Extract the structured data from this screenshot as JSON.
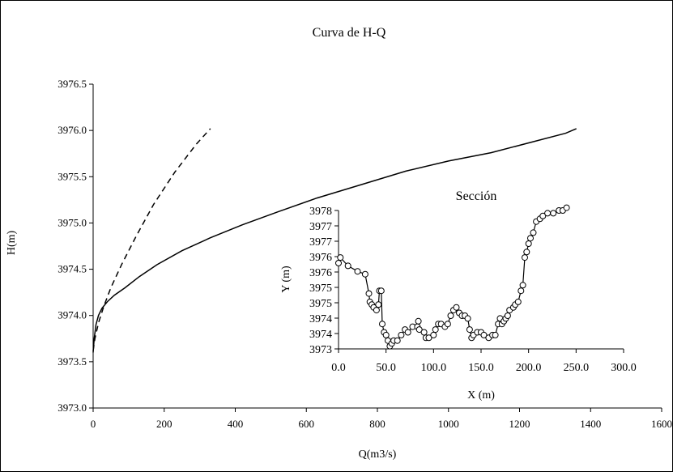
{
  "chart_data": [
    {
      "type": "line",
      "title": "Curva de H-Q",
      "xlabel": "Q(m3/s)",
      "ylabel": "H(m)",
      "xlim": [
        0,
        1600
      ],
      "ylim": [
        3973.0,
        3976.5
      ],
      "x_ticks": [
        "0",
        "200",
        "400",
        "600",
        "800",
        "1000",
        "1200",
        "1400",
        "1600"
      ],
      "y_ticks": [
        "3973.0",
        "3973.5",
        "3974.0",
        "3974.5",
        "3975.0",
        "3975.5",
        "3976.0",
        "3976.5"
      ],
      "grid": false,
      "series": [
        {
          "style": "solid",
          "color": "#000000",
          "points": [
            [
              0,
              3973.6
            ],
            [
              3,
              3973.75
            ],
            [
              8,
              3973.9
            ],
            [
              15,
              3974.0
            ],
            [
              25,
              3974.08
            ],
            [
              40,
              3974.15
            ],
            [
              60,
              3974.22
            ],
            [
              90,
              3974.3
            ],
            [
              130,
              3974.42
            ],
            [
              180,
              3974.55
            ],
            [
              250,
              3974.7
            ],
            [
              330,
              3974.84
            ],
            [
              420,
              3974.98
            ],
            [
              520,
              3975.12
            ],
            [
              630,
              3975.27
            ],
            [
              760,
              3975.42
            ],
            [
              880,
              3975.56
            ],
            [
              1000,
              3975.67
            ],
            [
              1120,
              3975.76
            ],
            [
              1240,
              3975.88
            ],
            [
              1330,
              3975.97
            ],
            [
              1360,
              3976.02
            ]
          ]
        },
        {
          "style": "dashed",
          "color": "#000000",
          "points": [
            [
              0,
              3973.62
            ],
            [
              5,
              3973.75
            ],
            [
              15,
              3973.92
            ],
            [
              30,
              3974.1
            ],
            [
              50,
              3974.3
            ],
            [
              80,
              3974.55
            ],
            [
              120,
              3974.85
            ],
            [
              170,
              3975.2
            ],
            [
              230,
              3975.55
            ],
            [
              290,
              3975.85
            ],
            [
              330,
              3976.02
            ]
          ]
        }
      ]
    },
    {
      "type": "scatter",
      "title": "Sección",
      "xlabel": "X (m)",
      "ylabel": "Y (m)",
      "xlim": [
        0,
        300
      ],
      "ylim": [
        3973,
        3978
      ],
      "x_ticks": [
        "0.0",
        "50.0",
        "100.0",
        "150.0",
        "200.0",
        "250.0",
        "300.0"
      ],
      "y_ticks": [
        "3973",
        "3974",
        "3974",
        "3975",
        "3975",
        "3976",
        "3976",
        "3977",
        "3977",
        "3978"
      ],
      "marker": "open-circle",
      "connected": true,
      "points": [
        [
          0,
          3976.1
        ],
        [
          2,
          3976.3
        ],
        [
          10,
          3976.0
        ],
        [
          20,
          3975.8
        ],
        [
          28,
          3975.7
        ],
        [
          32,
          3975.0
        ],
        [
          33,
          3974.7
        ],
        [
          35,
          3974.6
        ],
        [
          37,
          3974.5
        ],
        [
          40,
          3974.4
        ],
        [
          42,
          3974.6
        ],
        [
          43,
          3975.1
        ],
        [
          45,
          3975.1
        ],
        [
          46,
          3973.9
        ],
        [
          48,
          3973.6
        ],
        [
          50,
          3973.5
        ],
        [
          52,
          3973.3
        ],
        [
          54,
          3973.1
        ],
        [
          56,
          3973.2
        ],
        [
          58,
          3973.3
        ],
        [
          62,
          3973.3
        ],
        [
          66,
          3973.5
        ],
        [
          70,
          3973.7
        ],
        [
          73,
          3973.6
        ],
        [
          78,
          3973.8
        ],
        [
          83,
          3973.8
        ],
        [
          84,
          3974.0
        ],
        [
          85,
          3973.7
        ],
        [
          90,
          3973.6
        ],
        [
          92,
          3973.4
        ],
        [
          95,
          3973.4
        ],
        [
          100,
          3973.5
        ],
        [
          102,
          3973.7
        ],
        [
          105,
          3973.9
        ],
        [
          108,
          3973.9
        ],
        [
          112,
          3973.8
        ],
        [
          115,
          3973.9
        ],
        [
          118,
          3974.2
        ],
        [
          121,
          3974.4
        ],
        [
          124,
          3974.5
        ],
        [
          127,
          3974.3
        ],
        [
          130,
          3974.2
        ],
        [
          133,
          3974.2
        ],
        [
          136,
          3974.1
        ],
        [
          138,
          3973.7
        ],
        [
          140,
          3973.4
        ],
        [
          142,
          3973.5
        ],
        [
          146,
          3973.6
        ],
        [
          150,
          3973.6
        ],
        [
          153,
          3973.5
        ],
        [
          158,
          3973.4
        ],
        [
          162,
          3973.5
        ],
        [
          165,
          3973.5
        ],
        [
          168,
          3973.9
        ],
        [
          170,
          3974.1
        ],
        [
          172,
          3973.9
        ],
        [
          174,
          3974.0
        ],
        [
          176,
          3974.1
        ],
        [
          178,
          3974.2
        ],
        [
          180,
          3974.4
        ],
        [
          184,
          3974.5
        ],
        [
          186,
          3974.6
        ],
        [
          189,
          3974.7
        ],
        [
          192,
          3975.1
        ],
        [
          194,
          3975.3
        ],
        [
          196,
          3976.3
        ],
        [
          198,
          3976.5
        ],
        [
          200,
          3976.8
        ],
        [
          202,
          3977.0
        ],
        [
          205,
          3977.2
        ],
        [
          208,
          3977.6
        ],
        [
          212,
          3977.7
        ],
        [
          215,
          3977.8
        ],
        [
          220,
          3977.9
        ],
        [
          226,
          3977.9
        ],
        [
          232,
          3978.0
        ],
        [
          236,
          3978.0
        ],
        [
          240,
          3978.1
        ]
      ]
    }
  ]
}
